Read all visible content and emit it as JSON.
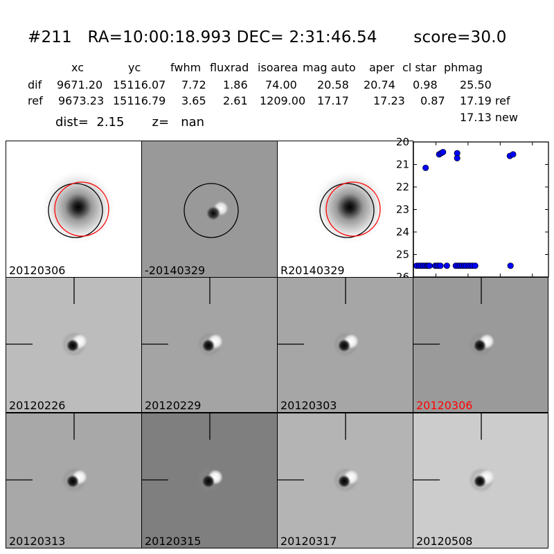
{
  "header": {
    "title": "#211   RA=10:00:18.993 DEC= 2:31:46.54       score=30.0",
    "columns": [
      "xc",
      "yc",
      "fwhm",
      "fluxrad",
      "isoarea",
      "mag auto",
      "aper",
      "cl star",
      "phmag"
    ],
    "rows": [
      {
        "name": "dif",
        "values": [
          "9671.20",
          "15116.07",
          "7.72",
          "1.86",
          "74.00",
          "20.58",
          "20.74",
          "0.98",
          "25.50"
        ]
      },
      {
        "name": "ref",
        "values": [
          "9673.23",
          "15116.79",
          "3.65",
          "2.61",
          "1209.00",
          "17.17",
          "17.23",
          "0.87",
          "17.19 ref"
        ]
      }
    ],
    "extra_phmag": "17.13 new",
    "dist_line": "dist=  2.15       z=   nan"
  },
  "panels": {
    "top": [
      {
        "label": "20120306",
        "label_color": "#000000"
      },
      {
        "label": "-20140329",
        "label_color": "#000000"
      },
      {
        "label": "R20140329",
        "label_color": "#000000"
      }
    ],
    "grid": [
      {
        "label": "20120226",
        "label_color": "#000000"
      },
      {
        "label": "20120229",
        "label_color": "#000000"
      },
      {
        "label": "20120303",
        "label_color": "#000000"
      },
      {
        "label": "20120306",
        "label_color": "#ff0000"
      },
      {
        "label": "20120313",
        "label_color": "#000000"
      },
      {
        "label": "20120315",
        "label_color": "#000000"
      },
      {
        "label": "20120317",
        "label_color": "#000000"
      },
      {
        "label": "20120508",
        "label_color": "#000000"
      }
    ]
  },
  "chart_data": {
    "type": "scatter",
    "title": "",
    "xlabel": "",
    "ylabel": "",
    "xlim": [
      -85,
      125
    ],
    "ylim": [
      26,
      20
    ],
    "y_inverted": true,
    "xticks": [
      -50,
      0,
      50,
      100
    ],
    "yticks": [
      20,
      21,
      22,
      23,
      24,
      25,
      26
    ],
    "grid": false,
    "marker_color": "#0000ff",
    "series": [
      {
        "points": [
          [
            -66,
            21.15
          ],
          [
            -45,
            20.55
          ],
          [
            -42,
            20.5
          ],
          [
            -39,
            20.45
          ],
          [
            -17,
            20.5
          ],
          [
            -17,
            20.72
          ],
          [
            65,
            20.62
          ],
          [
            70,
            20.55
          ],
          [
            -80,
            25.5
          ],
          [
            -76,
            25.5
          ],
          [
            -73,
            25.5
          ],
          [
            -70,
            25.5
          ],
          [
            -67,
            25.5
          ],
          [
            -64,
            25.5
          ],
          [
            -62,
            25.5
          ],
          [
            -60,
            25.5
          ],
          [
            -51,
            25.5
          ],
          [
            -48,
            25.5
          ],
          [
            -46,
            25.5
          ],
          [
            -43,
            25.5
          ],
          [
            -33,
            25.5
          ],
          [
            -19,
            25.5
          ],
          [
            -15,
            25.5
          ],
          [
            -12,
            25.5
          ],
          [
            -9,
            25.5
          ],
          [
            -6,
            25.5
          ],
          [
            -3,
            25.5
          ],
          [
            1,
            25.5
          ],
          [
            4,
            25.5
          ],
          [
            7,
            25.5
          ],
          [
            11,
            25.5
          ],
          [
            66,
            25.5
          ]
        ]
      }
    ]
  }
}
